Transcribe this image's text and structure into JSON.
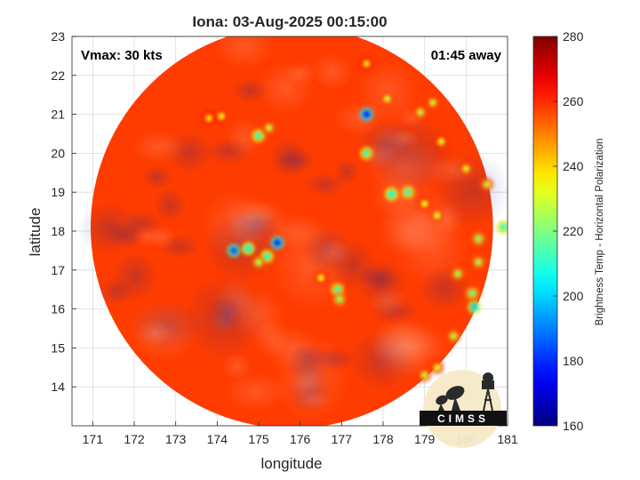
{
  "chart_data": {
    "type": "heatmap",
    "title": "Iona: 03-Aug-2025 00:15:00",
    "xlabel": "longitude",
    "ylabel": "latitude",
    "xlim": [
      170.5,
      181
    ],
    "ylim": [
      13,
      23
    ],
    "xticks": [
      171,
      172,
      173,
      174,
      175,
      176,
      177,
      178,
      179,
      180,
      181
    ],
    "yticks": [
      14,
      15,
      16,
      17,
      18,
      19,
      20,
      21,
      22,
      23
    ],
    "grid": true,
    "annotations": {
      "vmax": "Vmax: 30 kts",
      "time_away": "01:45 away"
    },
    "colorbar": {
      "label": "Brightness Temp - Horizontal Polarization",
      "range": [
        160,
        280
      ],
      "ticks": [
        160,
        180,
        200,
        220,
        240,
        260,
        280
      ],
      "colormap": "jet"
    },
    "swath": {
      "center": [
        175.8,
        18.1
      ],
      "radius_deg": 4.85
    },
    "background_tb": 258,
    "features": [
      {
        "lon": 177.6,
        "lat": 21.0,
        "tb": 178
      },
      {
        "lon": 174.4,
        "lat": 17.5,
        "tb": 185
      },
      {
        "lon": 174.75,
        "lat": 17.55,
        "tb": 205
      },
      {
        "lon": 175.45,
        "lat": 17.7,
        "tb": 180
      },
      {
        "lon": 175.2,
        "lat": 17.35,
        "tb": 208
      },
      {
        "lon": 175.0,
        "lat": 17.2,
        "tb": 225
      },
      {
        "lon": 176.9,
        "lat": 16.5,
        "tb": 212
      },
      {
        "lon": 176.95,
        "lat": 16.25,
        "tb": 222
      },
      {
        "lon": 175.0,
        "lat": 20.45,
        "tb": 210
      },
      {
        "lon": 175.25,
        "lat": 20.65,
        "tb": 228
      },
      {
        "lon": 177.6,
        "lat": 20.0,
        "tb": 212
      },
      {
        "lon": 178.2,
        "lat": 18.95,
        "tb": 205
      },
      {
        "lon": 178.6,
        "lat": 19.0,
        "tb": 212
      },
      {
        "lon": 180.2,
        "lat": 16.05,
        "tb": 200
      },
      {
        "lon": 180.15,
        "lat": 16.4,
        "tb": 218
      },
      {
        "lon": 180.3,
        "lat": 17.8,
        "tb": 222
      },
      {
        "lon": 180.3,
        "lat": 17.2,
        "tb": 225
      },
      {
        "lon": 180.9,
        "lat": 18.1,
        "tb": 210
      },
      {
        "lon": 179.8,
        "lat": 16.9,
        "tb": 225
      },
      {
        "lon": 179.7,
        "lat": 15.3,
        "tb": 226
      },
      {
        "lon": 178.1,
        "lat": 21.4,
        "tb": 230
      },
      {
        "lon": 178.9,
        "lat": 21.05,
        "tb": 228
      },
      {
        "lon": 179.2,
        "lat": 21.3,
        "tb": 230
      },
      {
        "lon": 179.4,
        "lat": 20.3,
        "tb": 232
      },
      {
        "lon": 180.0,
        "lat": 19.6,
        "tb": 230
      },
      {
        "lon": 180.5,
        "lat": 19.2,
        "tb": 228
      },
      {
        "lon": 179.3,
        "lat": 18.4,
        "tb": 230
      },
      {
        "lon": 179.0,
        "lat": 18.7,
        "tb": 232
      },
      {
        "lon": 179.0,
        "lat": 14.3,
        "tb": 228
      },
      {
        "lon": 179.3,
        "lat": 14.5,
        "tb": 232
      },
      {
        "lon": 173.8,
        "lat": 20.9,
        "tb": 236
      },
      {
        "lon": 174.1,
        "lat": 20.95,
        "tb": 234
      },
      {
        "lon": 177.6,
        "lat": 22.3,
        "tb": 236
      },
      {
        "lon": 176.5,
        "lat": 16.8,
        "tb": 234
      }
    ],
    "dark_cells": [
      {
        "lon": 172.2,
        "lat": 18.2
      },
      {
        "lon": 171.8,
        "lat": 17.9
      },
      {
        "lon": 173.1,
        "lat": 17.6
      },
      {
        "lon": 176.6,
        "lat": 19.2
      },
      {
        "lon": 175.9,
        "lat": 19.8
      },
      {
        "lon": 177.9,
        "lat": 16.8
      },
      {
        "lon": 176.2,
        "lat": 14.8
      },
      {
        "lon": 174.8,
        "lat": 21.6
      }
    ]
  },
  "logo": {
    "text": "CIMSS",
    "name": "cimss-logo"
  }
}
